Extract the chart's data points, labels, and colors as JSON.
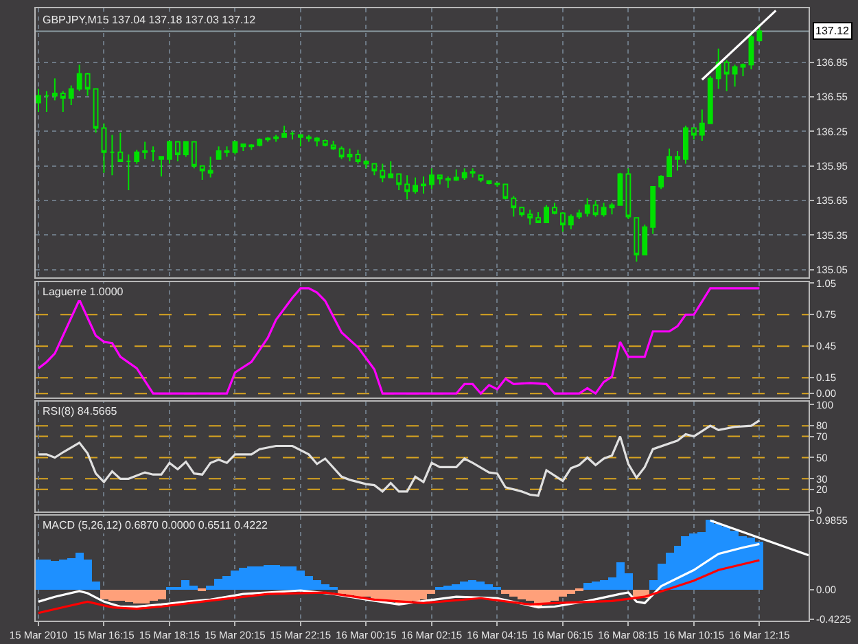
{
  "chart_data": [
    {
      "type": "candlestick",
      "title": "GBPJPY,M15 137.04 137.18 137.03 137.12",
      "xlim": [
        "2010-03-15T14:10",
        "2010-03-16T13:45"
      ],
      "ylim": [
        134.98,
        137.32
      ],
      "yticks": [
        135.05,
        135.35,
        135.65,
        135.95,
        136.25,
        136.55,
        136.85
      ],
      "xticks": [
        {
          "value": "2010-03-15T14:15",
          "label": null
        },
        {
          "value": "2010-03-15T16:15",
          "label": null
        },
        {
          "value": "2010-03-15T18:15",
          "label": null
        },
        {
          "value": "2010-03-15T20:15",
          "label": null
        },
        {
          "value": "2010-03-15T22:15",
          "label": null
        },
        {
          "value": "2010-03-16T00:15",
          "label": null
        },
        {
          "value": "2010-03-16T02:15",
          "label": null
        },
        {
          "value": "2010-03-16T04:15",
          "label": null
        },
        {
          "value": "2010-03-16T06:15",
          "label": null
        },
        {
          "value": "2010-03-16T08:15",
          "label": null
        },
        {
          "value": "2010-03-16T10:15",
          "label": null
        },
        {
          "value": "2010-03-16T12:15",
          "label": null
        }
      ],
      "tick_labels": "y",
      "grid": true,
      "ref_lines": [
        {
          "axis": "y",
          "value": 137.12,
          "label": "137.12",
          "color": "#8a9aa0",
          "line_style": "solid"
        }
      ],
      "series": [
        {
          "type": "candlestick",
          "color": "#00e000",
          "x": [
            "2010-03-15T14:15",
            "2010-03-15T14:30",
            "2010-03-15T14:45",
            "2010-03-15T15:00",
            "2010-03-15T15:15",
            "2010-03-15T15:30",
            "2010-03-15T15:45",
            "2010-03-15T16:00",
            "2010-03-15T16:15",
            "2010-03-15T16:30",
            "2010-03-15T16:45",
            "2010-03-15T17:00",
            "2010-03-15T17:15",
            "2010-03-15T17:30",
            "2010-03-15T17:45",
            "2010-03-15T18:00",
            "2010-03-15T18:15",
            "2010-03-15T18:30",
            "2010-03-15T18:45",
            "2010-03-15T19:00",
            "2010-03-15T19:15",
            "2010-03-15T19:30",
            "2010-03-15T19:45",
            "2010-03-15T20:00",
            "2010-03-15T20:15",
            "2010-03-15T20:30",
            "2010-03-15T20:45",
            "2010-03-15T21:00",
            "2010-03-15T21:15",
            "2010-03-15T21:30",
            "2010-03-15T21:45",
            "2010-03-15T22:00",
            "2010-03-15T22:15",
            "2010-03-15T22:30",
            "2010-03-15T22:45",
            "2010-03-15T23:00",
            "2010-03-15T23:15",
            "2010-03-15T23:30",
            "2010-03-15T23:45",
            "2010-03-16T00:00",
            "2010-03-16T00:15",
            "2010-03-16T00:30",
            "2010-03-16T00:45",
            "2010-03-16T01:00",
            "2010-03-16T01:15",
            "2010-03-16T01:30",
            "2010-03-16T01:45",
            "2010-03-16T02:00",
            "2010-03-16T02:15",
            "2010-03-16T02:30",
            "2010-03-16T02:45",
            "2010-03-16T03:00",
            "2010-03-16T03:15",
            "2010-03-16T03:30",
            "2010-03-16T03:45",
            "2010-03-16T04:00",
            "2010-03-16T04:15",
            "2010-03-16T04:30",
            "2010-03-16T04:45",
            "2010-03-16T05:00",
            "2010-03-16T05:15",
            "2010-03-16T05:30",
            "2010-03-16T05:45",
            "2010-03-16T06:00",
            "2010-03-16T06:15",
            "2010-03-16T06:30",
            "2010-03-16T06:45",
            "2010-03-16T07:00",
            "2010-03-16T07:15",
            "2010-03-16T07:30",
            "2010-03-16T07:45",
            "2010-03-16T08:00",
            "2010-03-16T08:15",
            "2010-03-16T08:30",
            "2010-03-16T08:45",
            "2010-03-16T09:00",
            "2010-03-16T09:15",
            "2010-03-16T09:30",
            "2010-03-16T09:45",
            "2010-03-16T10:00",
            "2010-03-16T10:15",
            "2010-03-16T10:30",
            "2010-03-16T10:45",
            "2010-03-16T11:00",
            "2010-03-16T11:15",
            "2010-03-16T11:30",
            "2010-03-16T11:45",
            "2010-03-16T12:00",
            "2010-03-16T12:15"
          ],
          "ohlc": [
            [
              136.5,
              136.62,
              136.42,
              136.56
            ],
            [
              136.56,
              136.6,
              136.42,
              136.56
            ],
            [
              136.56,
              136.71,
              136.52,
              136.58
            ],
            [
              136.58,
              136.6,
              136.42,
              136.54
            ],
            [
              136.54,
              136.65,
              136.48,
              136.62
            ],
            [
              136.62,
              136.83,
              136.6,
              136.75
            ],
            [
              136.75,
              136.76,
              136.56,
              136.62
            ],
            [
              136.62,
              136.62,
              136.24,
              136.28
            ],
            [
              136.28,
              136.32,
              135.89,
              136.07
            ],
            [
              136.07,
              136.22,
              135.87,
              136.07
            ],
            [
              136.07,
              136.24,
              135.99,
              135.99
            ],
            [
              135.99,
              136.05,
              135.74,
              135.99
            ],
            [
              135.99,
              136.09,
              135.97,
              136.07
            ],
            [
              136.07,
              136.16,
              136.01,
              136.08
            ],
            [
              136.08,
              136.12,
              135.99,
              136.08
            ],
            [
              136.03,
              136.03,
              135.86,
              136.01
            ],
            [
              136.01,
              136.17,
              135.97,
              136.16
            ],
            [
              136.16,
              136.16,
              135.99,
              136.05
            ],
            [
              136.05,
              136.16,
              136.03,
              136.16
            ],
            [
              136.16,
              136.16,
              135.93,
              135.95
            ],
            [
              135.95,
              135.95,
              135.83,
              135.91
            ],
            [
              135.91,
              136.03,
              135.85,
              135.89
            ],
            [
              136.01,
              136.12,
              136.01,
              136.08
            ],
            [
              136.08,
              136.12,
              136.03,
              136.07
            ],
            [
              136.07,
              136.16,
              136.05,
              136.16
            ],
            [
              136.14,
              136.14,
              136.08,
              136.12
            ],
            [
              136.12,
              136.14,
              136.09,
              136.13
            ],
            [
              136.13,
              136.19,
              136.12,
              136.18
            ],
            [
              136.18,
              136.2,
              136.16,
              136.19
            ],
            [
              136.19,
              136.22,
              136.16,
              136.2
            ],
            [
              136.2,
              136.3,
              136.2,
              136.23
            ],
            [
              136.23,
              136.25,
              136.18,
              136.23
            ],
            [
              136.22,
              136.22,
              136.12,
              136.2
            ],
            [
              136.2,
              136.22,
              136.16,
              136.19
            ],
            [
              136.19,
              136.2,
              136.12,
              136.17
            ],
            [
              136.17,
              136.18,
              136.12,
              136.13
            ],
            [
              136.13,
              136.17,
              136.09,
              136.1
            ],
            [
              136.1,
              136.12,
              136.01,
              136.03
            ],
            [
              136.03,
              136.1,
              135.99,
              136.05
            ],
            [
              136.05,
              136.09,
              135.97,
              135.99
            ],
            [
              135.99,
              136.0,
              135.93,
              135.97
            ],
            [
              135.97,
              135.97,
              135.87,
              135.91
            ],
            [
              135.91,
              135.97,
              135.81,
              135.85
            ],
            [
              135.85,
              135.99,
              135.85,
              135.88
            ],
            [
              135.88,
              135.88,
              135.74,
              135.79
            ],
            [
              135.79,
              135.87,
              135.66,
              135.73
            ],
            [
              135.73,
              135.85,
              135.71,
              135.78
            ],
            [
              135.78,
              135.86,
              135.71,
              135.79
            ],
            [
              135.79,
              135.93,
              135.75,
              135.87
            ],
            [
              135.87,
              135.87,
              135.79,
              135.84
            ],
            [
              135.84,
              135.86,
              135.76,
              135.83
            ],
            [
              135.83,
              135.92,
              135.82,
              135.85
            ],
            [
              135.85,
              135.93,
              135.83,
              135.89
            ],
            [
              135.89,
              135.93,
              135.85,
              135.9
            ],
            [
              135.87,
              135.87,
              135.81,
              135.83
            ],
            [
              135.82,
              135.82,
              135.79,
              135.8
            ],
            [
              135.8,
              135.8,
              135.77,
              135.79
            ],
            [
              135.79,
              135.79,
              135.66,
              135.67
            ],
            [
              135.67,
              135.69,
              135.51,
              135.59
            ],
            [
              135.59,
              135.59,
              135.51,
              135.53
            ],
            [
              135.53,
              135.57,
              135.44,
              135.5
            ],
            [
              135.5,
              135.55,
              135.46,
              135.46
            ],
            [
              135.46,
              135.61,
              135.46,
              135.59
            ],
            [
              135.59,
              135.63,
              135.53,
              135.54
            ],
            [
              135.54,
              135.55,
              135.38,
              135.44
            ],
            [
              135.44,
              135.53,
              135.4,
              135.51
            ],
            [
              135.51,
              135.57,
              135.49,
              135.54
            ],
            [
              135.54,
              135.67,
              135.51,
              135.61
            ],
            [
              135.61,
              135.65,
              135.51,
              135.53
            ],
            [
              135.53,
              135.63,
              135.51,
              135.59
            ],
            [
              135.59,
              135.63,
              135.53,
              135.61
            ],
            [
              135.61,
              135.89,
              135.61,
              135.88
            ],
            [
              135.88,
              135.93,
              135.49,
              135.51
            ],
            [
              135.5,
              135.5,
              135.12,
              135.18
            ],
            [
              135.18,
              135.44,
              135.18,
              135.42
            ],
            [
              135.42,
              135.77,
              135.36,
              135.77
            ],
            [
              135.77,
              135.87,
              135.75,
              135.86
            ],
            [
              135.86,
              136.1,
              135.86,
              136.03
            ],
            [
              136.03,
              136.08,
              135.91,
              136.01
            ],
            [
              136.01,
              136.3,
              135.97,
              136.28
            ],
            [
              136.28,
              136.28,
              136.18,
              136.22
            ],
            [
              136.22,
              136.44,
              136.17,
              136.32
            ],
            [
              136.32,
              136.73,
              136.32,
              136.71
            ],
            [
              136.71,
              136.97,
              136.62,
              136.85
            ],
            [
              136.85,
              136.87,
              136.6,
              136.75
            ],
            [
              136.75,
              136.83,
              136.64,
              136.81
            ],
            [
              136.81,
              136.84,
              136.73,
              136.83
            ],
            [
              136.83,
              137.09,
              136.79,
              137.07
            ],
            [
              137.04,
              137.18,
              137.03,
              137.12
            ]
          ]
        },
        {
          "type": "line",
          "color": "#ffffff",
          "x": [
            "2010-03-16T10:30",
            "2010-03-16T12:45"
          ],
          "values": [
            136.7,
            137.3
          ]
        }
      ]
    },
    {
      "type": "line",
      "title": "Laguerre 1.0000",
      "xlim": [
        "2010-03-15T14:10",
        "2010-03-16T13:45"
      ],
      "ylim": [
        -0.04,
        1.06
      ],
      "yticks": [
        {
          "value": 0,
          "label": "0.00"
        },
        0.15,
        0.45,
        0.75,
        1.05
      ],
      "xticks": [
        {
          "value": "2010-03-15T14:15",
          "label": null
        },
        {
          "value": "2010-03-15T16:15",
          "label": null
        },
        {
          "value": "2010-03-15T18:15",
          "label": null
        },
        {
          "value": "2010-03-15T20:15",
          "label": null
        },
        {
          "value": "2010-03-15T22:15",
          "label": null
        },
        {
          "value": "2010-03-16T00:15",
          "label": null
        },
        {
          "value": "2010-03-16T02:15",
          "label": null
        },
        {
          "value": "2010-03-16T04:15",
          "label": null
        },
        {
          "value": "2010-03-16T06:15",
          "label": null
        },
        {
          "value": "2010-03-16T08:15",
          "label": null
        },
        {
          "value": "2010-03-16T10:15",
          "label": null
        },
        {
          "value": "2010-03-16T12:15",
          "label": null
        }
      ],
      "tick_labels": "y",
      "grid": "x",
      "ref_lines": [
        {
          "axis": "y",
          "value": 0.75,
          "color": "#daa520",
          "line_style": "dashed"
        },
        {
          "axis": "y",
          "value": 0.45,
          "color": "#daa520",
          "line_style": "dashed"
        },
        {
          "axis": "y",
          "value": 0.15,
          "color": "#daa520",
          "line_style": "dashed"
        },
        {
          "axis": "y",
          "value": 0,
          "color": "#daa520",
          "line_style": "dashed"
        }
      ],
      "series": [
        {
          "color": "#ff00ff",
          "x": [
            "2010-03-15T14:15",
            "2010-03-15T14:30",
            "2010-03-15T14:45",
            "2010-03-15T15:30",
            "2010-03-15T16:00",
            "2010-03-15T16:15",
            "2010-03-15T16:30",
            "2010-03-15T16:45",
            "2010-03-15T17:15",
            "2010-03-15T17:45",
            "2010-03-15T20:00",
            "2010-03-15T20:15",
            "2010-03-15T20:45",
            "2010-03-15T21:15",
            "2010-03-15T21:30",
            "2010-03-15T22:00",
            "2010-03-15T22:15",
            "2010-03-15T22:30",
            "2010-03-15T22:45",
            "2010-03-15T23:00",
            "2010-03-15T23:30",
            "2010-03-16T00:00",
            "2010-03-16T00:30",
            "2010-03-16T00:45",
            "2010-03-16T03:00",
            "2010-03-16T03:15",
            "2010-03-16T03:30",
            "2010-03-16T03:45",
            "2010-03-16T04:00",
            "2010-03-16T04:15",
            "2010-03-16T04:30",
            "2010-03-16T04:45",
            "2010-03-16T05:15",
            "2010-03-16T05:45",
            "2010-03-16T06:00",
            "2010-03-16T06:45",
            "2010-03-16T07:00",
            "2010-03-16T07:15",
            "2010-03-16T07:30",
            "2010-03-16T07:45",
            "2010-03-16T08:00",
            "2010-03-16T08:15",
            "2010-03-16T08:45",
            "2010-03-16T09:00",
            "2010-03-16T09:30",
            "2010-03-16T09:45",
            "2010-03-16T10:00",
            "2010-03-16T10:15",
            "2010-03-16T10:45",
            "2010-03-16T12:15"
          ],
          "values": [
            0.24,
            0.3,
            0.38,
            0.89,
            0.55,
            0.49,
            0.48,
            0.35,
            0.24,
            0,
            0,
            0.2,
            0.3,
            0.53,
            0.7,
            0.91,
            1.0,
            1.0,
            0.96,
            0.88,
            0.58,
            0.44,
            0.23,
            0,
            0,
            0.09,
            0.09,
            0,
            0.08,
            0.04,
            0.14,
            0.09,
            0.1,
            0.09,
            0,
            0,
            0.05,
            0,
            0.11,
            0.16,
            0.49,
            0.35,
            0.35,
            0.59,
            0.59,
            0.64,
            0.75,
            0.75,
            1.0,
            1.0
          ]
        }
      ]
    },
    {
      "type": "line",
      "title": "RSI(8) 84.5665",
      "xlim": [
        "2010-03-15T14:10",
        "2010-03-16T13:45"
      ],
      "ylim": [
        -1,
        103
      ],
      "yticks": [
        0,
        20,
        30,
        50,
        70,
        80,
        100
      ],
      "xticks": [
        {
          "value": "2010-03-15T14:15",
          "label": null
        },
        {
          "value": "2010-03-15T16:15",
          "label": null
        },
        {
          "value": "2010-03-15T18:15",
          "label": null
        },
        {
          "value": "2010-03-15T20:15",
          "label": null
        },
        {
          "value": "2010-03-15T22:15",
          "label": null
        },
        {
          "value": "2010-03-16T00:15",
          "label": null
        },
        {
          "value": "2010-03-16T02:15",
          "label": null
        },
        {
          "value": "2010-03-16T04:15",
          "label": null
        },
        {
          "value": "2010-03-16T06:15",
          "label": null
        },
        {
          "value": "2010-03-16T08:15",
          "label": null
        },
        {
          "value": "2010-03-16T10:15",
          "label": null
        },
        {
          "value": "2010-03-16T12:15",
          "label": null
        }
      ],
      "tick_labels": "y",
      "grid": "x",
      "ref_lines": [
        {
          "axis": "y",
          "value": 80,
          "color": "#daa520",
          "line_style": "dashed"
        },
        {
          "axis": "y",
          "value": 70,
          "color": "#daa520",
          "line_style": "dashed"
        },
        {
          "axis": "y",
          "value": 50,
          "color": "#daa520",
          "line_style": "dashed"
        },
        {
          "axis": "y",
          "value": 30,
          "color": "#daa520",
          "line_style": "dashed"
        },
        {
          "axis": "y",
          "value": 20,
          "color": "#daa520",
          "line_style": "dashed"
        }
      ],
      "series": [
        {
          "color": "#e0e0e0",
          "x": [
            "2010-03-15T14:15",
            "2010-03-15T14:30",
            "2010-03-15T14:45",
            "2010-03-15T15:00",
            "2010-03-15T15:30",
            "2010-03-15T15:45",
            "2010-03-15T16:00",
            "2010-03-15T16:15",
            "2010-03-15T16:30",
            "2010-03-15T16:45",
            "2010-03-15T17:00",
            "2010-03-15T17:30",
            "2010-03-15T17:45",
            "2010-03-15T18:00",
            "2010-03-15T18:15",
            "2010-03-15T18:30",
            "2010-03-15T18:45",
            "2010-03-15T19:00",
            "2010-03-15T19:15",
            "2010-03-15T19:30",
            "2010-03-15T19:45",
            "2010-03-15T20:00",
            "2010-03-15T20:15",
            "2010-03-15T20:45",
            "2010-03-15T21:00",
            "2010-03-15T21:30",
            "2010-03-15T22:00",
            "2010-03-15T22:30",
            "2010-03-15T22:45",
            "2010-03-15T23:00",
            "2010-03-15T23:30",
            "2010-03-15T23:45",
            "2010-03-16T00:15",
            "2010-03-16T00:30",
            "2010-03-16T00:45",
            "2010-03-16T01:00",
            "2010-03-16T01:15",
            "2010-03-16T01:30",
            "2010-03-16T01:45",
            "2010-03-16T02:00",
            "2010-03-16T02:15",
            "2010-03-16T02:30",
            "2010-03-16T03:00",
            "2010-03-16T03:15",
            "2010-03-16T03:30",
            "2010-03-16T04:00",
            "2010-03-16T04:15",
            "2010-03-16T04:30",
            "2010-03-16T05:00",
            "2010-03-16T05:15",
            "2010-03-16T05:30",
            "2010-03-16T05:45",
            "2010-03-16T06:15",
            "2010-03-16T06:30",
            "2010-03-16T06:45",
            "2010-03-16T07:00",
            "2010-03-16T07:15",
            "2010-03-16T07:30",
            "2010-03-16T07:45",
            "2010-03-16T08:00",
            "2010-03-16T08:15",
            "2010-03-16T08:30",
            "2010-03-16T08:45",
            "2010-03-16T09:00",
            "2010-03-16T09:45",
            "2010-03-16T10:00",
            "2010-03-16T10:15",
            "2010-03-16T10:45",
            "2010-03-16T11:00",
            "2010-03-16T11:30",
            "2010-03-16T12:00",
            "2010-03-16T12:15"
          ],
          "values": [
            53,
            53,
            50,
            55,
            64,
            54,
            35,
            27,
            37,
            30,
            30,
            36,
            34,
            34,
            45,
            39,
            46,
            35,
            34,
            45,
            48,
            45,
            53,
            53,
            58,
            61,
            61,
            53,
            44,
            49,
            32,
            29,
            25,
            24,
            18,
            26,
            18,
            18,
            32,
            27,
            45,
            41,
            41,
            49,
            45,
            36,
            35,
            22,
            18,
            15,
            14,
            38,
            28,
            40,
            43,
            50,
            43,
            49,
            52,
            70,
            44,
            31,
            41,
            58,
            66,
            72,
            70,
            80,
            76,
            79,
            80,
            85
          ]
        }
      ]
    },
    {
      "type": "bar",
      "title": "MACD (5,26,12) 0.6870 0.0000 0.6511 0.4222",
      "xlim": [
        "2010-03-15T14:10",
        "2010-03-16T13:45"
      ],
      "ylim": [
        -0.44,
        1.05
      ],
      "yticks": [
        -0.4225,
        {
          "value": 0,
          "label": "0.00"
        },
        0.9855
      ],
      "xticks": [
        {
          "value": "2010-03-15T14:15",
          "label": "15 Mar 2010"
        },
        {
          "value": "2010-03-15T16:15",
          "label": "15 Mar 16:15"
        },
        {
          "value": "2010-03-15T18:15",
          "label": "15 Mar 18:15"
        },
        {
          "value": "2010-03-15T20:15",
          "label": "15 Mar 20:15"
        },
        {
          "value": "2010-03-15T22:15",
          "label": "15 Mar 22:15"
        },
        {
          "value": "2010-03-16T00:15",
          "label": "16 Mar 00:15"
        },
        {
          "value": "2010-03-16T02:15",
          "label": "16 Mar 02:15"
        },
        {
          "value": "2010-03-16T04:15",
          "label": "16 Mar 04:15"
        },
        {
          "value": "2010-03-16T06:15",
          "label": "16 Mar 06:15"
        },
        {
          "value": "2010-03-16T08:15",
          "label": "16 Mar 08:15"
        },
        {
          "value": "2010-03-16T10:15",
          "label": "16 Mar 10:15"
        },
        {
          "value": "2010-03-16T12:15",
          "label": "16 Mar 12:15"
        }
      ],
      "grid": "x",
      "series": [
        {
          "type": "bar",
          "x": [
            "2010-03-15T14:15",
            "2010-03-15T14:30",
            "2010-03-15T14:45",
            "2010-03-15T15:00",
            "2010-03-15T15:15",
            "2010-03-15T15:30",
            "2010-03-15T15:45",
            "2010-03-15T16:00",
            "2010-03-15T16:15",
            "2010-03-15T16:30",
            "2010-03-15T16:45",
            "2010-03-15T17:00",
            "2010-03-15T17:15",
            "2010-03-15T17:30",
            "2010-03-15T17:45",
            "2010-03-15T18:00",
            "2010-03-15T18:15",
            "2010-03-15T18:30",
            "2010-03-15T18:45",
            "2010-03-15T19:00",
            "2010-03-15T19:15",
            "2010-03-15T19:30",
            "2010-03-15T19:45",
            "2010-03-15T20:00",
            "2010-03-15T20:15",
            "2010-03-15T20:30",
            "2010-03-15T20:45",
            "2010-03-15T21:00",
            "2010-03-15T21:15",
            "2010-03-15T21:30",
            "2010-03-15T21:45",
            "2010-03-15T22:00",
            "2010-03-15T22:15",
            "2010-03-15T22:30",
            "2010-03-15T22:45",
            "2010-03-15T23:00",
            "2010-03-15T23:15",
            "2010-03-15T23:30",
            "2010-03-15T23:45",
            "2010-03-16T00:00",
            "2010-03-16T00:15",
            "2010-03-16T00:30",
            "2010-03-16T00:45",
            "2010-03-16T01:00",
            "2010-03-16T01:15",
            "2010-03-16T01:30",
            "2010-03-16T01:45",
            "2010-03-16T02:00",
            "2010-03-16T02:15",
            "2010-03-16T02:30",
            "2010-03-16T02:45",
            "2010-03-16T03:00",
            "2010-03-16T03:15",
            "2010-03-16T03:30",
            "2010-03-16T03:45",
            "2010-03-16T04:00",
            "2010-03-16T04:15",
            "2010-03-16T04:30",
            "2010-03-16T04:45",
            "2010-03-16T05:00",
            "2010-03-16T05:15",
            "2010-03-16T05:30",
            "2010-03-16T05:45",
            "2010-03-16T06:00",
            "2010-03-16T06:15",
            "2010-03-16T06:30",
            "2010-03-16T06:45",
            "2010-03-16T07:00",
            "2010-03-16T07:15",
            "2010-03-16T07:30",
            "2010-03-16T07:45",
            "2010-03-16T08:00",
            "2010-03-16T08:15",
            "2010-03-16T08:30",
            "2010-03-16T08:45",
            "2010-03-16T09:00",
            "2010-03-16T09:15",
            "2010-03-16T09:30",
            "2010-03-16T09:45",
            "2010-03-16T10:00",
            "2010-03-16T10:15",
            "2010-03-16T10:30",
            "2010-03-16T10:45",
            "2010-03-16T11:00",
            "2010-03-16T11:15",
            "2010-03-16T11:30",
            "2010-03-16T11:45",
            "2010-03-16T12:00",
            "2010-03-16T12:15"
          ],
          "values": [
            0.42,
            0.42,
            0.41,
            0.42,
            0.45,
            0.52,
            0.42,
            0.11,
            -0.14,
            -0.16,
            -0.17,
            -0.19,
            -0.21,
            -0.2,
            -0.16,
            -0.14,
            0.04,
            0.04,
            0.14,
            0.05,
            -0.02,
            0.05,
            0.15,
            0.2,
            0.26,
            0.3,
            0.32,
            0.33,
            0.34,
            0.34,
            0.33,
            0.32,
            0.26,
            0.19,
            0.13,
            0.08,
            0.03,
            -0.06,
            -0.08,
            -0.1,
            -0.11,
            -0.14,
            -0.16,
            -0.17,
            -0.21,
            -0.19,
            -0.16,
            -0.14,
            -0.06,
            0.04,
            0.05,
            0.08,
            0.11,
            0.13,
            0.11,
            0.08,
            0.04,
            -0.06,
            -0.1,
            -0.14,
            -0.17,
            -0.25,
            -0.21,
            -0.16,
            -0.1,
            -0.06,
            -0.02,
            0.09,
            0.11,
            0.13,
            0.17,
            0.38,
            0.22,
            -0.12,
            -0.12,
            0.13,
            0.36,
            0.52,
            0.62,
            0.75,
            0.79,
            0.81,
            0.9855,
            0.94,
            0.89,
            0.83,
            0.76,
            0.74,
            0.687
          ],
          "colors": [
            "#1e90ff",
            "#1e90ff",
            "#1e90ff",
            "#1e90ff",
            "#1e90ff",
            "#1e90ff",
            "#1e90ff",
            "#1e90ff",
            "#ffa07a",
            "#ffa07a",
            "#ffa07a",
            "#ffa07a",
            "#ffa07a",
            "#ffa07a",
            "#ffa07a",
            "#ffa07a",
            "#1e90ff",
            "#1e90ff",
            "#1e90ff",
            "#1e90ff",
            "#ffa07a",
            "#1e90ff",
            "#1e90ff",
            "#1e90ff",
            "#1e90ff",
            "#1e90ff",
            "#1e90ff",
            "#1e90ff",
            "#1e90ff",
            "#1e90ff",
            "#1e90ff",
            "#1e90ff",
            "#1e90ff",
            "#1e90ff",
            "#1e90ff",
            "#1e90ff",
            "#1e90ff",
            "#ffa07a",
            "#ffa07a",
            "#ffa07a",
            "#ffa07a",
            "#ffa07a",
            "#ffa07a",
            "#ffa07a",
            "#ffa07a",
            "#ffa07a",
            "#ffa07a",
            "#ffa07a",
            "#ffa07a",
            "#1e90ff",
            "#1e90ff",
            "#1e90ff",
            "#1e90ff",
            "#1e90ff",
            "#1e90ff",
            "#1e90ff",
            "#1e90ff",
            "#ffa07a",
            "#ffa07a",
            "#ffa07a",
            "#ffa07a",
            "#ffa07a",
            "#ffa07a",
            "#ffa07a",
            "#ffa07a",
            "#ffa07a",
            "#ffa07a",
            "#1e90ff",
            "#1e90ff",
            "#1e90ff",
            "#1e90ff",
            "#1e90ff",
            "#1e90ff",
            "#ffa07a",
            "#ffa07a",
            "#1e90ff",
            "#1e90ff",
            "#1e90ff",
            "#1e90ff",
            "#1e90ff",
            "#1e90ff",
            "#1e90ff",
            "#1e90ff",
            "#1e90ff",
            "#1e90ff",
            "#1e90ff",
            "#1e90ff",
            "#1e90ff",
            "#1e90ff"
          ]
        },
        {
          "type": "line",
          "color": "#ffffff",
          "x": [
            "2010-03-15T14:15",
            "2010-03-15T14:45",
            "2010-03-15T15:30",
            "2010-03-15T15:45",
            "2010-03-15T16:15",
            "2010-03-15T16:45",
            "2010-03-15T17:15",
            "2010-03-15T18:00",
            "2010-03-15T18:45",
            "2010-03-15T19:30",
            "2010-03-15T20:30",
            "2010-03-15T22:15",
            "2010-03-15T23:15",
            "2010-03-16T00:15",
            "2010-03-16T01:15",
            "2010-03-16T02:00",
            "2010-03-16T03:00",
            "2010-03-16T04:15",
            "2010-03-16T05:30",
            "2010-03-16T06:00",
            "2010-03-16T07:00",
            "2010-03-16T08:00",
            "2010-03-16T08:15",
            "2010-03-16T08:30",
            "2010-03-16T08:45",
            "2010-03-16T09:15",
            "2010-03-16T10:15",
            "2010-03-16T11:00",
            "2010-03-16T11:45",
            "2010-03-16T12:15"
          ],
          "values": [
            -0.17,
            -0.1,
            -0.02,
            -0.05,
            -0.17,
            -0.24,
            -0.24,
            -0.21,
            -0.17,
            -0.14,
            -0.06,
            -0.01,
            -0.06,
            -0.14,
            -0.21,
            -0.16,
            -0.1,
            -0.12,
            -0.25,
            -0.24,
            -0.16,
            -0.06,
            -0.04,
            -0.17,
            -0.19,
            0.05,
            0.28,
            0.51,
            0.6,
            0.65
          ]
        },
        {
          "type": "line",
          "color": "#ff0000",
          "x": [
            "2010-03-15T14:15",
            "2010-03-15T15:00",
            "2010-03-15T15:45",
            "2010-03-15T16:30",
            "2010-03-15T17:15",
            "2010-03-15T18:00",
            "2010-03-15T19:45",
            "2010-03-15T21:15",
            "2010-03-15T23:00",
            "2010-03-16T00:30",
            "2010-03-16T02:00",
            "2010-03-16T03:45",
            "2010-03-16T05:15",
            "2010-03-16T06:00",
            "2010-03-16T07:45",
            "2010-03-16T08:45",
            "2010-03-16T10:15",
            "2010-03-16T11:00",
            "2010-03-16T12:15"
          ],
          "values": [
            -0.33,
            -0.25,
            -0.17,
            -0.25,
            -0.27,
            -0.24,
            -0.14,
            -0.06,
            -0.04,
            -0.14,
            -0.19,
            -0.12,
            -0.21,
            -0.19,
            -0.16,
            -0.1,
            0.13,
            0.28,
            0.42
          ]
        },
        {
          "type": "line",
          "color": "#ffffff",
          "x": [
            "2010-03-16T10:45",
            "2010-03-16T13:45"
          ],
          "values": [
            0.9855,
            0.49
          ]
        }
      ]
    }
  ]
}
